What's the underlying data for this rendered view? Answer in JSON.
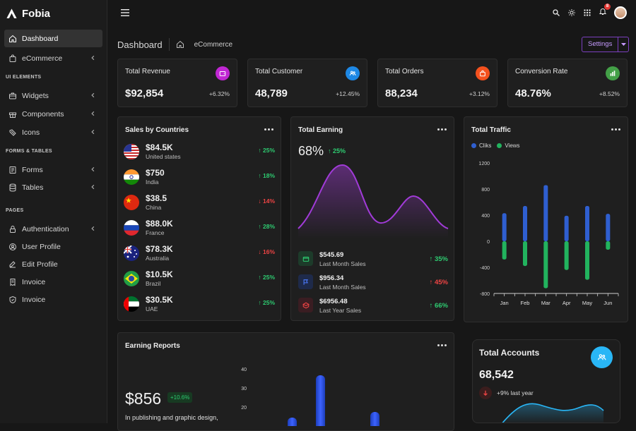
{
  "brand": {
    "name": "Fobia"
  },
  "nav": {
    "dashboard": "Dashboard",
    "ecommerce": "eCommerce",
    "ui_elements": "UI ELEMENTS",
    "widgets": "Widgets",
    "components": "Components",
    "icons": "Icons",
    "forms_tables": "FORMS & TABLES",
    "forms": "Forms",
    "tables": "Tables",
    "pages": "PAGES",
    "authentication": "Authentication",
    "user_profile": "User Profile",
    "edit_profile": "Edit Profile",
    "invoice1": "Invoice",
    "invoice2": "Invoice"
  },
  "topbar": {
    "notification_count": "8"
  },
  "breadcrumb": {
    "title": "Dashboard",
    "leaf": "eCommerce"
  },
  "settings_label": "Settings",
  "kpis": [
    {
      "label": "Total Revenue",
      "value": "$92,854",
      "pct": "+6.32%",
      "color": "#c026d3",
      "icon": "wallet-icon"
    },
    {
      "label": "Total Customer",
      "value": "48,789",
      "pct": "+12.45%",
      "color": "#1e88e5",
      "icon": "users-icon"
    },
    {
      "label": "Total Orders",
      "value": "88,234",
      "pct": "+3.12%",
      "color": "#f4511e",
      "icon": "bag-icon"
    },
    {
      "label": "Conversion Rate",
      "value": "48.76%",
      "pct": "+8.52%",
      "color": "#43a047",
      "icon": "chart-icon"
    }
  ],
  "sales_by_countries": {
    "title": "Sales by Countries",
    "rows": [
      {
        "value": "$84.5K",
        "name": "United states",
        "pct": "25%",
        "trend": "up"
      },
      {
        "value": "$750",
        "name": "India",
        "pct": "18%",
        "trend": "up"
      },
      {
        "value": "$38.5",
        "name": "China",
        "pct": "14%",
        "trend": "down"
      },
      {
        "value": "$88.0K",
        "name": "France",
        "pct": "28%",
        "trend": "up"
      },
      {
        "value": "$78.3K",
        "name": "Australia",
        "pct": "16%",
        "trend": "down"
      },
      {
        "value": "$10.5K",
        "name": "Brazil",
        "pct": "25%",
        "trend": "up"
      },
      {
        "value": "$30.5K",
        "name": "UAE",
        "pct": "25%",
        "trend": "up"
      }
    ]
  },
  "total_earning": {
    "title": "Total Earning",
    "value": "68%",
    "pct": "25%",
    "rows": [
      {
        "value": "$545.69",
        "label": "Last Month Sales",
        "pct": "35%",
        "trend": "up",
        "color": "#1d3b2a",
        "icon": "wallet-icon"
      },
      {
        "value": "$956.34",
        "label": "Last Month Sales",
        "pct": "45%",
        "trend": "up",
        "color": "#1e2a4a",
        "icon": "flag-icon"
      },
      {
        "value": "$6956.48",
        "label": "Last Year Sales",
        "pct": "66%",
        "trend": "up",
        "color": "#3a1d22",
        "icon": "box-icon"
      }
    ]
  },
  "total_traffic": {
    "title": "Total Traffic",
    "legend": [
      "Cliks",
      "Views"
    ]
  },
  "earning_reports": {
    "title": "Earning Reports",
    "value": "$856",
    "pill": "+10.6%",
    "desc": "In publishing and graphic design,"
  },
  "total_accounts": {
    "title": "Total Accounts",
    "value": "68,542",
    "change": "+9% last year"
  },
  "chart_data": [
    {
      "type": "bar",
      "title": "Total Traffic",
      "categories": [
        "Jan",
        "Feb",
        "Mar",
        "Apr",
        "May",
        "Jun"
      ],
      "series": [
        {
          "name": "Cliks",
          "values": [
            430,
            540,
            860,
            390,
            540,
            420
          ],
          "color": "#2f5fd0"
        },
        {
          "name": "Views",
          "values": [
            -280,
            -380,
            -720,
            -440,
            -590,
            -130
          ],
          "color": "#22b35e"
        }
      ],
      "ylim": [
        -800,
        1200
      ],
      "yticks": [
        1200,
        800,
        400,
        0,
        -400,
        -800
      ]
    },
    {
      "type": "bar",
      "title": "Earning Reports",
      "yticks": [
        40,
        30,
        20
      ]
    }
  ]
}
